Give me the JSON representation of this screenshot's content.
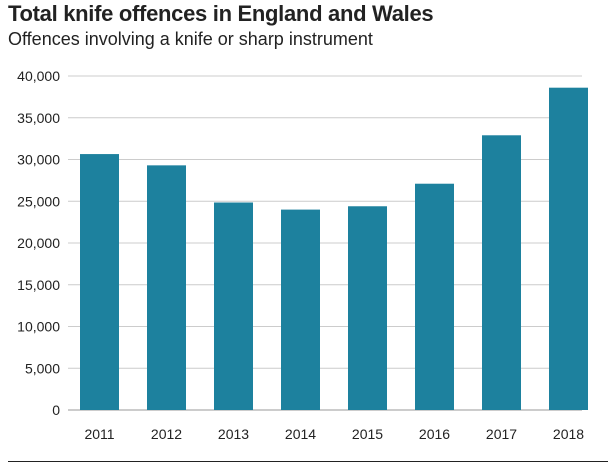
{
  "chart_data": {
    "type": "bar",
    "title": "Total knife offences in England and Wales",
    "subtitle": "Offences involving a knife or sharp instrument",
    "xlabel": "",
    "ylabel": "",
    "categories": [
      "2011",
      "2012",
      "2013",
      "2014",
      "2015",
      "2016",
      "2017",
      "2018"
    ],
    "values": [
      30650,
      29300,
      24850,
      24000,
      24400,
      27100,
      32900,
      38600
    ],
    "ylim": [
      0,
      40000
    ],
    "yticks": [
      0,
      5000,
      10000,
      15000,
      20000,
      25000,
      30000,
      35000,
      40000
    ],
    "ytick_labels": [
      "0",
      "5,000",
      "10,000",
      "15,000",
      "20,000",
      "25,000",
      "30,000",
      "35,000",
      "40,000"
    ],
    "grid": true,
    "bar_color": "#1d819e",
    "grid_color": "#cccccc"
  }
}
